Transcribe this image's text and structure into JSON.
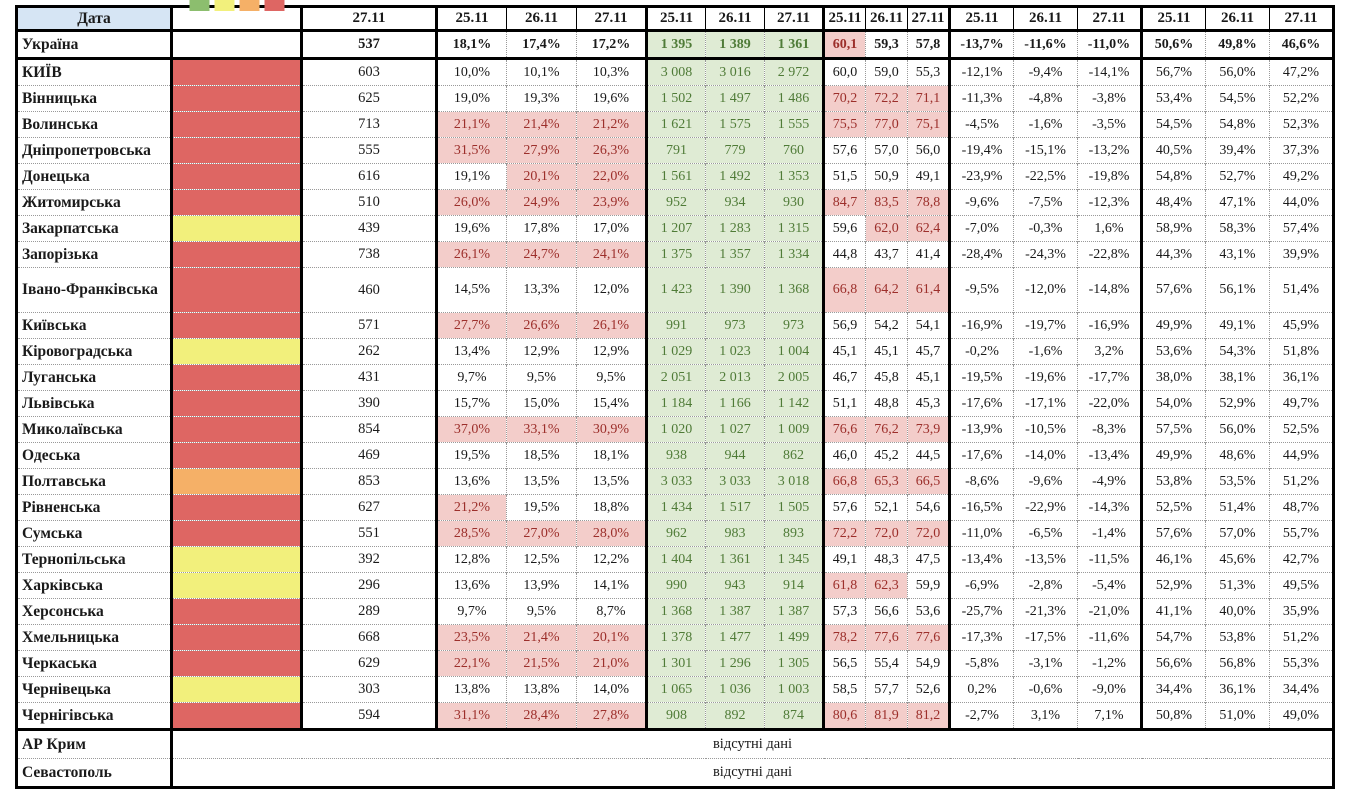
{
  "table": {
    "date_header": "Дата",
    "single_date": "27.11",
    "dates": [
      "25.11",
      "26.11",
      "27.11"
    ],
    "missing_data_label": "відсутні дані",
    "header_fill": "#D6E5F4",
    "legend": [
      {
        "name": "green",
        "color": "#8CBE6E"
      },
      {
        "name": "yellow",
        "color": "#F2F07C"
      },
      {
        "name": "orange",
        "color": "#F5B067"
      },
      {
        "name": "red",
        "color": "#DE6663"
      }
    ],
    "status_colors": {
      "red": "#DE6663",
      "yellow": "#F2F07C",
      "orange": "#F5B067"
    },
    "highlight_colors": {
      "cell_bg": "#F3CDCA",
      "cell_text": "#9C2F2B",
      "volume_bg": "#DFEBD4",
      "volume_text": "#4F7B37"
    },
    "highlight_rules": {
      "pct1_red_min": 20,
      "load_red_over": 60
    },
    "rows": [
      {
        "name": "Україна",
        "bold": true,
        "status": null,
        "val": "537",
        "pct1": [
          "18,1%",
          "17,4%",
          "17,2%"
        ],
        "vol": [
          "1 395",
          "1 389",
          "1 361"
        ],
        "load": [
          "60,1",
          "59,3",
          "57,8"
        ],
        "chg": [
          "-13,7%",
          "-11,6%",
          "-11,0%"
        ],
        "share": [
          "50,6%",
          "49,8%",
          "46,6%"
        ]
      },
      {
        "name": "КИЇВ",
        "status": "red",
        "val": "603",
        "pct1": [
          "10,0%",
          "10,1%",
          "10,3%"
        ],
        "vol": [
          "3 008",
          "3 016",
          "2 972"
        ],
        "load": [
          "60,0",
          "59,0",
          "55,3"
        ],
        "chg": [
          "-12,1%",
          "-9,4%",
          "-14,1%"
        ],
        "share": [
          "56,7%",
          "56,0%",
          "47,2%"
        ]
      },
      {
        "name": "Вінницька",
        "status": "red",
        "val": "625",
        "pct1": [
          "19,0%",
          "19,3%",
          "19,6%"
        ],
        "vol": [
          "1 502",
          "1 497",
          "1 486"
        ],
        "load": [
          "70,2",
          "72,2",
          "71,1"
        ],
        "chg": [
          "-11,3%",
          "-4,8%",
          "-3,8%"
        ],
        "share": [
          "53,4%",
          "54,5%",
          "52,2%"
        ]
      },
      {
        "name": "Волинська",
        "status": "red",
        "val": "713",
        "pct1": [
          "21,1%",
          "21,4%",
          "21,2%"
        ],
        "vol": [
          "1 621",
          "1 575",
          "1 555"
        ],
        "load": [
          "75,5",
          "77,0",
          "75,1"
        ],
        "chg": [
          "-4,5%",
          "-1,6%",
          "-3,5%"
        ],
        "share": [
          "54,5%",
          "54,8%",
          "52,3%"
        ]
      },
      {
        "name": "Дніпропетровська",
        "status": "red",
        "val": "555",
        "pct1": [
          "31,5%",
          "27,9%",
          "26,3%"
        ],
        "vol": [
          "791",
          "779",
          "760"
        ],
        "load": [
          "57,6",
          "57,0",
          "56,0"
        ],
        "chg": [
          "-19,4%",
          "-15,1%",
          "-13,2%"
        ],
        "share": [
          "40,5%",
          "39,4%",
          "37,3%"
        ]
      },
      {
        "name": "Донецька",
        "status": "red",
        "val": "616",
        "pct1": [
          "19,1%",
          "20,1%",
          "22,0%"
        ],
        "vol": [
          "1 561",
          "1 492",
          "1 353"
        ],
        "load": [
          "51,5",
          "50,9",
          "49,1"
        ],
        "chg": [
          "-23,9%",
          "-22,5%",
          "-19,8%"
        ],
        "share": [
          "54,8%",
          "52,7%",
          "49,2%"
        ]
      },
      {
        "name": "Житомирська",
        "status": "red",
        "val": "510",
        "pct1": [
          "26,0%",
          "24,9%",
          "23,9%"
        ],
        "vol": [
          "952",
          "934",
          "930"
        ],
        "load": [
          "84,7",
          "83,5",
          "78,8"
        ],
        "chg": [
          "-9,6%",
          "-7,5%",
          "-12,3%"
        ],
        "share": [
          "48,4%",
          "47,1%",
          "44,0%"
        ]
      },
      {
        "name": "Закарпатська",
        "status": "yellow",
        "val": "439",
        "pct1": [
          "19,6%",
          "17,8%",
          "17,0%"
        ],
        "vol": [
          "1 207",
          "1 283",
          "1 315"
        ],
        "load": [
          "59,6",
          "62,0",
          "62,4"
        ],
        "chg": [
          "-7,0%",
          "-0,3%",
          "1,6%"
        ],
        "share": [
          "58,9%",
          "58,3%",
          "57,4%"
        ]
      },
      {
        "name": "Запорізька",
        "status": "red",
        "val": "738",
        "pct1": [
          "26,1%",
          "24,7%",
          "24,1%"
        ],
        "vol": [
          "1 375",
          "1 357",
          "1 334"
        ],
        "load": [
          "44,8",
          "43,7",
          "41,4"
        ],
        "chg": [
          "-28,4%",
          "-24,3%",
          "-22,8%"
        ],
        "share": [
          "44,3%",
          "43,1%",
          "39,9%"
        ]
      },
      {
        "name": "Івано-Франківська",
        "tall": true,
        "status": "red",
        "val": "460",
        "pct1": [
          "14,5%",
          "13,3%",
          "12,0%"
        ],
        "vol": [
          "1 423",
          "1 390",
          "1 368"
        ],
        "load": [
          "66,8",
          "64,2",
          "61,4"
        ],
        "chg": [
          "-9,5%",
          "-12,0%",
          "-14,8%"
        ],
        "share": [
          "57,6%",
          "56,1%",
          "51,4%"
        ]
      },
      {
        "name": "Київська",
        "status": "red",
        "val": "571",
        "pct1": [
          "27,7%",
          "26,6%",
          "26,1%"
        ],
        "vol": [
          "991",
          "973",
          "973"
        ],
        "load": [
          "56,9",
          "54,2",
          "54,1"
        ],
        "chg": [
          "-16,9%",
          "-19,7%",
          "-16,9%"
        ],
        "share": [
          "49,9%",
          "49,1%",
          "45,9%"
        ]
      },
      {
        "name": "Кіровоградська",
        "status": "yellow",
        "val": "262",
        "pct1": [
          "13,4%",
          "12,9%",
          "12,9%"
        ],
        "vol": [
          "1 029",
          "1 023",
          "1 004"
        ],
        "load": [
          "45,1",
          "45,1",
          "45,7"
        ],
        "chg": [
          "-0,2%",
          "-1,6%",
          "3,2%"
        ],
        "share": [
          "53,6%",
          "54,3%",
          "51,8%"
        ]
      },
      {
        "name": "Луганська",
        "status": "red",
        "val": "431",
        "pct1": [
          "9,7%",
          "9,5%",
          "9,5%"
        ],
        "vol": [
          "2 051",
          "2 013",
          "2 005"
        ],
        "load": [
          "46,7",
          "45,8",
          "45,1"
        ],
        "chg": [
          "-19,5%",
          "-19,6%",
          "-17,7%"
        ],
        "share": [
          "38,0%",
          "38,1%",
          "36,1%"
        ]
      },
      {
        "name": "Львівська",
        "status": "red",
        "val": "390",
        "pct1": [
          "15,7%",
          "15,0%",
          "15,4%"
        ],
        "vol": [
          "1 184",
          "1 166",
          "1 142"
        ],
        "load": [
          "51,1",
          "48,8",
          "45,3"
        ],
        "chg": [
          "-17,6%",
          "-17,1%",
          "-22,0%"
        ],
        "share": [
          "54,0%",
          "52,9%",
          "49,7%"
        ]
      },
      {
        "name": "Миколаївська",
        "status": "red",
        "val": "854",
        "pct1": [
          "37,0%",
          "33,1%",
          "30,9%"
        ],
        "vol": [
          "1 020",
          "1 027",
          "1 009"
        ],
        "load": [
          "76,6",
          "76,2",
          "73,9"
        ],
        "chg": [
          "-13,9%",
          "-10,5%",
          "-8,3%"
        ],
        "share": [
          "57,5%",
          "56,0%",
          "52,5%"
        ]
      },
      {
        "name": "Одеська",
        "status": "red",
        "val": "469",
        "pct1": [
          "19,5%",
          "18,5%",
          "18,1%"
        ],
        "vol": [
          "938",
          "944",
          "862"
        ],
        "load": [
          "46,0",
          "45,2",
          "44,5"
        ],
        "chg": [
          "-17,6%",
          "-14,0%",
          "-13,4%"
        ],
        "share": [
          "49,9%",
          "48,6%",
          "44,9%"
        ]
      },
      {
        "name": "Полтавська",
        "status": "orange",
        "val": "853",
        "pct1": [
          "13,6%",
          "13,5%",
          "13,5%"
        ],
        "vol": [
          "3 033",
          "3 033",
          "3 018"
        ],
        "load": [
          "66,8",
          "65,3",
          "66,5"
        ],
        "chg": [
          "-8,6%",
          "-9,6%",
          "-4,9%"
        ],
        "share": [
          "53,8%",
          "53,5%",
          "51,2%"
        ]
      },
      {
        "name": "Рівненська",
        "status": "red",
        "val": "627",
        "pct1": [
          "21,2%",
          "19,5%",
          "18,8%"
        ],
        "vol": [
          "1 434",
          "1 517",
          "1 505"
        ],
        "load": [
          "57,6",
          "52,1",
          "54,6"
        ],
        "chg": [
          "-16,5%",
          "-22,9%",
          "-14,3%"
        ],
        "share": [
          "52,5%",
          "51,4%",
          "48,7%"
        ]
      },
      {
        "name": "Сумська",
        "status": "red",
        "val": "551",
        "pct1": [
          "28,5%",
          "27,0%",
          "28,0%"
        ],
        "vol": [
          "962",
          "983",
          "893"
        ],
        "load": [
          "72,2",
          "72,0",
          "72,0"
        ],
        "chg": [
          "-11,0%",
          "-6,5%",
          "-1,4%"
        ],
        "share": [
          "57,6%",
          "57,0%",
          "55,7%"
        ]
      },
      {
        "name": "Тернопільська",
        "status": "yellow",
        "val": "392",
        "pct1": [
          "12,8%",
          "12,5%",
          "12,2%"
        ],
        "vol": [
          "1 404",
          "1 361",
          "1 345"
        ],
        "load": [
          "49,1",
          "48,3",
          "47,5"
        ],
        "chg": [
          "-13,4%",
          "-13,5%",
          "-11,5%"
        ],
        "share": [
          "46,1%",
          "45,6%",
          "42,7%"
        ]
      },
      {
        "name": "Харківська",
        "status": "yellow",
        "val": "296",
        "pct1": [
          "13,6%",
          "13,9%",
          "14,1%"
        ],
        "vol": [
          "990",
          "943",
          "914"
        ],
        "load": [
          "61,8",
          "62,3",
          "59,9"
        ],
        "chg": [
          "-6,9%",
          "-2,8%",
          "-5,4%"
        ],
        "share": [
          "52,9%",
          "51,3%",
          "49,5%"
        ]
      },
      {
        "name": "Херсонська",
        "status": "red",
        "val": "289",
        "pct1": [
          "9,7%",
          "9,5%",
          "8,7%"
        ],
        "vol": [
          "1 368",
          "1 387",
          "1 387"
        ],
        "load": [
          "57,3",
          "56,6",
          "53,6"
        ],
        "chg": [
          "-25,7%",
          "-21,3%",
          "-21,0%"
        ],
        "share": [
          "41,1%",
          "40,0%",
          "35,9%"
        ]
      },
      {
        "name": "Хмельницька",
        "status": "red",
        "val": "668",
        "pct1": [
          "23,5%",
          "21,4%",
          "20,1%"
        ],
        "vol": [
          "1 378",
          "1 477",
          "1 499"
        ],
        "load": [
          "78,2",
          "77,6",
          "77,6"
        ],
        "chg": [
          "-17,3%",
          "-17,5%",
          "-11,6%"
        ],
        "share": [
          "54,7%",
          "53,8%",
          "51,2%"
        ]
      },
      {
        "name": "Черкаська",
        "status": "red",
        "val": "629",
        "pct1": [
          "22,1%",
          "21,5%",
          "21,0%"
        ],
        "vol": [
          "1 301",
          "1 296",
          "1 305"
        ],
        "load": [
          "56,5",
          "55,4",
          "54,9"
        ],
        "chg": [
          "-5,8%",
          "-3,1%",
          "-1,2%"
        ],
        "share": [
          "56,6%",
          "56,8%",
          "55,3%"
        ]
      },
      {
        "name": "Чернівецька",
        "status": "yellow",
        "val": "303",
        "pct1": [
          "13,8%",
          "13,8%",
          "14,0%"
        ],
        "vol": [
          "1 065",
          "1 036",
          "1 003"
        ],
        "load": [
          "58,5",
          "57,7",
          "52,6"
        ],
        "chg": [
          "0,2%",
          "-0,6%",
          "-9,0%"
        ],
        "share": [
          "34,4%",
          "36,1%",
          "34,4%"
        ]
      },
      {
        "name": "Чернігівська",
        "status": "red",
        "val": "594",
        "pct1": [
          "31,1%",
          "28,4%",
          "27,8%"
        ],
        "vol": [
          "908",
          "892",
          "874"
        ],
        "load": [
          "80,6",
          "81,9",
          "81,2"
        ],
        "chg": [
          "-2,7%",
          "3,1%",
          "7,1%"
        ],
        "share": [
          "50,8%",
          "51,0%",
          "49,0%"
        ]
      },
      {
        "name": "АР Крим",
        "no_data": true,
        "sep": true
      },
      {
        "name": "Севастополь",
        "no_data": true
      }
    ]
  }
}
